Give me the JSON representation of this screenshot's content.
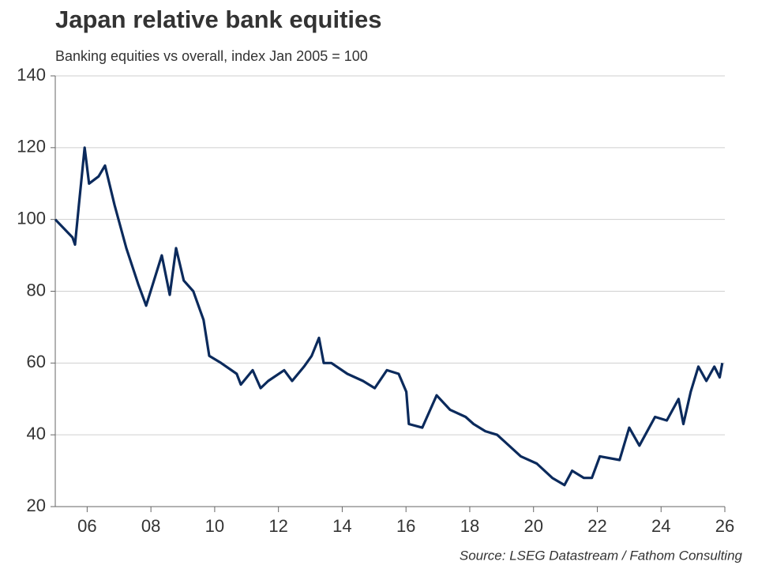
{
  "chart_data": {
    "type": "line",
    "title": "Japan relative bank equities",
    "subtitle": "Banking equities vs overall, index Jan 2005 = 100",
    "source": "Source: LSEG Datastream / Fathom Consulting",
    "x": [
      2005.0,
      2005.54,
      2005.62,
      2005.74,
      2005.92,
      2006.06,
      2006.36,
      2006.56,
      2006.86,
      2007.23,
      2007.6,
      2007.85,
      2008.34,
      2008.59,
      2008.79,
      2009.03,
      2009.33,
      2009.65,
      2009.83,
      2010.2,
      2010.69,
      2010.82,
      2011.19,
      2011.44,
      2011.68,
      2012.18,
      2012.43,
      2012.8,
      2013.04,
      2013.27,
      2013.42,
      2013.66,
      2014.16,
      2014.65,
      2015.02,
      2015.4,
      2015.77,
      2016.01,
      2016.09,
      2016.51,
      2016.76,
      2016.96,
      2017.38,
      2017.87,
      2018.12,
      2018.49,
      2018.86,
      2019.6,
      2020.1,
      2020.59,
      2020.97,
      2021.21,
      2021.58,
      2021.83,
      2022.08,
      2022.7,
      2023.0,
      2023.32,
      2023.81,
      2024.18,
      2024.55,
      2024.7,
      2024.93,
      2025.17,
      2025.42,
      2025.67,
      2025.84,
      2025.92
    ],
    "series": [
      {
        "name": "Banking equities vs overall",
        "color": "#0b2a5c",
        "values": [
          100,
          95,
          93,
          104,
          120,
          110,
          112,
          115,
          104,
          92,
          82,
          76,
          90,
          79,
          92,
          83,
          80,
          72,
          62,
          60,
          57,
          54,
          58,
          53,
          55,
          58,
          55,
          59,
          62,
          67,
          60,
          60,
          57,
          55,
          53,
          58,
          57,
          52,
          43,
          42,
          47,
          51,
          47,
          45,
          43,
          41,
          40,
          34,
          32,
          28,
          26,
          30,
          28,
          28,
          34,
          33,
          42,
          37,
          45,
          44,
          50,
          43,
          52,
          59,
          55,
          59,
          56,
          60
        ]
      }
    ],
    "xlim": [
      2005,
      2026
    ],
    "xticks": [
      {
        "value": 2006,
        "label": "06"
      },
      {
        "value": 2008,
        "label": "08"
      },
      {
        "value": 2010,
        "label": "10"
      },
      {
        "value": 2012,
        "label": "12"
      },
      {
        "value": 2014,
        "label": "14"
      },
      {
        "value": 2016,
        "label": "16"
      },
      {
        "value": 2018,
        "label": "18"
      },
      {
        "value": 2020,
        "label": "20"
      },
      {
        "value": 2022,
        "label": "22"
      },
      {
        "value": 2024,
        "label": "24"
      },
      {
        "value": 2026,
        "label": "26"
      }
    ],
    "ylim": [
      20,
      140
    ],
    "yticks": [
      20,
      40,
      60,
      80,
      100,
      120,
      140
    ],
    "grid": true
  }
}
